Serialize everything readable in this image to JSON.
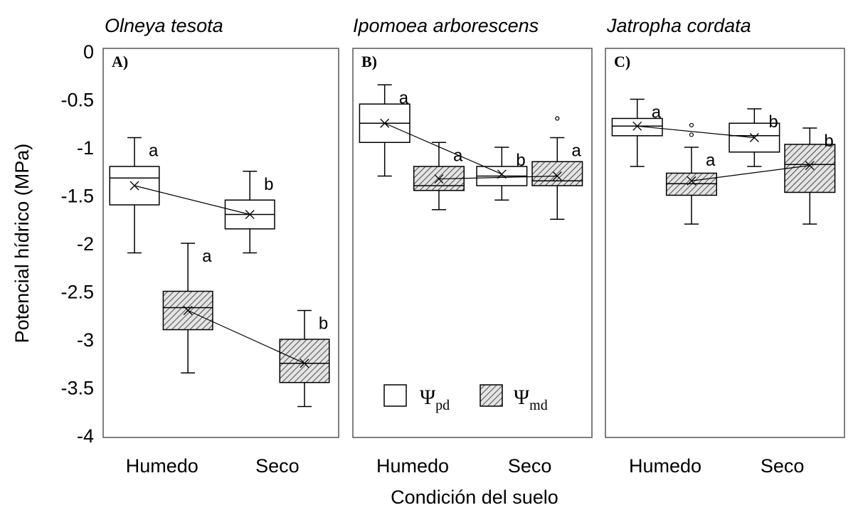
{
  "chart_data": [
    {
      "type": "box",
      "panel_label": "A)",
      "title": "Olneya tesota",
      "categories": [
        "Humedo",
        "Seco"
      ],
      "ylabel": "Potencial hídrico (MPa)",
      "xlabel": "Condición del suelo",
      "ylim": [
        -4,
        0
      ],
      "yticks": [
        "0",
        "-0.5",
        "-1",
        "-1.5",
        "-2",
        "-2.5",
        "-3",
        "-3.5",
        "-4"
      ],
      "boxes": [
        {
          "category": "Humedo",
          "series": "pd",
          "whisker_high": -0.9,
          "q3": -1.2,
          "median": -1.32,
          "q1": -1.6,
          "whisker_low": -2.1,
          "mean": -1.4,
          "outliers": [],
          "letter": "a"
        },
        {
          "category": "Humedo",
          "series": "md",
          "whisker_high": -2.0,
          "q3": -2.5,
          "median": -2.67,
          "q1": -2.9,
          "whisker_low": -3.35,
          "mean": -2.7,
          "outliers": [],
          "letter": "a"
        },
        {
          "category": "Seco",
          "series": "pd",
          "whisker_high": -1.25,
          "q3": -1.55,
          "median": -1.7,
          "q1": -1.85,
          "whisker_low": -2.1,
          "mean": -1.7,
          "outliers": [],
          "letter": "b"
        },
        {
          "category": "Seco",
          "series": "md",
          "whisker_high": -2.7,
          "q3": -3.0,
          "median": -3.25,
          "q1": -3.45,
          "whisker_low": -3.7,
          "mean": -3.25,
          "outliers": [],
          "letter": "b"
        }
      ]
    },
    {
      "type": "box",
      "panel_label": "B)",
      "title": "Ipomoea arborescens",
      "categories": [
        "Humedo",
        "Seco"
      ],
      "ylim": [
        -4,
        0
      ],
      "boxes": [
        {
          "category": "Humedo",
          "series": "pd",
          "whisker_high": -0.35,
          "q3": -0.55,
          "median": -0.75,
          "q1": -0.95,
          "whisker_low": -1.3,
          "mean": -0.75,
          "outliers": [],
          "letter": "a"
        },
        {
          "category": "Humedo",
          "series": "md",
          "whisker_high": -0.95,
          "q3": -1.2,
          "median": -1.4,
          "q1": -1.45,
          "whisker_low": -1.65,
          "mean": -1.33,
          "outliers": [],
          "letter": "a"
        },
        {
          "category": "Seco",
          "series": "pd",
          "whisker_high": -1.0,
          "q3": -1.2,
          "median": -1.3,
          "q1": -1.4,
          "whisker_low": -1.55,
          "mean": -1.28,
          "outliers": [],
          "letter": "b"
        },
        {
          "category": "Seco",
          "series": "md",
          "whisker_high": -0.9,
          "q3": -1.15,
          "median": -1.35,
          "q1": -1.4,
          "whisker_low": -1.75,
          "mean": -1.3,
          "outliers": [
            -0.7
          ],
          "letter": "a"
        }
      ],
      "legend": [
        {
          "series": "pd",
          "symbol": "Ψ",
          "sub": "pd",
          "fill": "open"
        },
        {
          "series": "md",
          "symbol": "Ψ",
          "sub": "md",
          "fill": "hatched"
        }
      ]
    },
    {
      "type": "box",
      "panel_label": "C)",
      "title": "Jatropha cordata",
      "categories": [
        "Humedo",
        "Seco"
      ],
      "ylim": [
        -4,
        0
      ],
      "boxes": [
        {
          "category": "Humedo",
          "series": "pd",
          "whisker_high": -0.5,
          "q3": -0.7,
          "median": -0.78,
          "q1": -0.88,
          "whisker_low": -1.2,
          "mean": -0.78,
          "outliers": [],
          "letter": "a"
        },
        {
          "category": "Humedo",
          "series": "md",
          "whisker_high": -1.0,
          "q3": -1.27,
          "median": -1.38,
          "q1": -1.5,
          "whisker_low": -1.8,
          "mean": -1.35,
          "outliers": [
            -0.77,
            -0.87
          ],
          "letter": "a"
        },
        {
          "category": "Seco",
          "series": "pd",
          "whisker_high": -0.6,
          "q3": -0.75,
          "median": -0.88,
          "q1": -1.05,
          "whisker_low": -1.2,
          "mean": -0.9,
          "outliers": [],
          "letter": "b"
        },
        {
          "category": "Seco",
          "series": "md",
          "whisker_high": -0.8,
          "q3": -0.97,
          "median": -1.18,
          "q1": -1.47,
          "whisker_low": -1.8,
          "mean": -1.19,
          "outliers": [],
          "letter": "b"
        }
      ]
    }
  ],
  "colors": {
    "frame": "#555555",
    "ink": "#000000",
    "hatch_bg": "#d9d9d9"
  }
}
